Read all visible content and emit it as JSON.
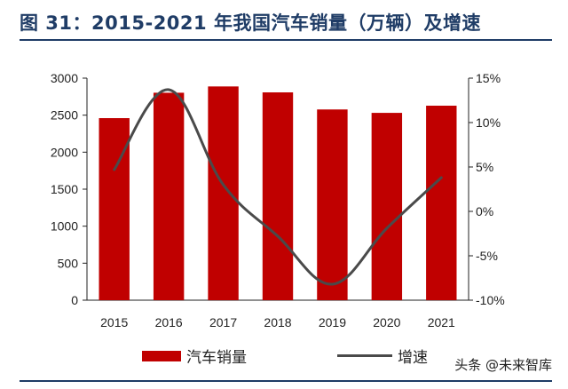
{
  "title": "图 31：2015-2021 年我国汽车销量（万辆）及增速",
  "watermark": "头条 @未来智库",
  "legend": {
    "bar_label": "汽车销量",
    "line_label": "增速"
  },
  "colors": {
    "bar": "#c00000",
    "line": "#4a4a4a",
    "title": "#1f3c66"
  },
  "chart_data": {
    "type": "bar",
    "categories": [
      "2015",
      "2016",
      "2017",
      "2018",
      "2019",
      "2020",
      "2021"
    ],
    "series": [
      {
        "name": "汽车销量",
        "type": "bar",
        "axis": "left",
        "values": [
          2460,
          2803,
          2888,
          2808,
          2577,
          2531,
          2628
        ]
      },
      {
        "name": "增速",
        "type": "line",
        "axis": "right",
        "values": [
          4.7,
          13.7,
          3.0,
          -2.8,
          -8.2,
          -1.9,
          3.8
        ]
      }
    ],
    "y_left": {
      "ylim": [
        0,
        3000
      ],
      "ticks": [
        "0",
        "500",
        "1000",
        "1500",
        "2000",
        "2500",
        "3000"
      ]
    },
    "y_right": {
      "ylim": [
        -10,
        15
      ],
      "ticks": [
        "-10%",
        "-5%",
        "0%",
        "5%",
        "10%",
        "15%"
      ]
    },
    "grid": false,
    "legend_position": "bottom"
  }
}
